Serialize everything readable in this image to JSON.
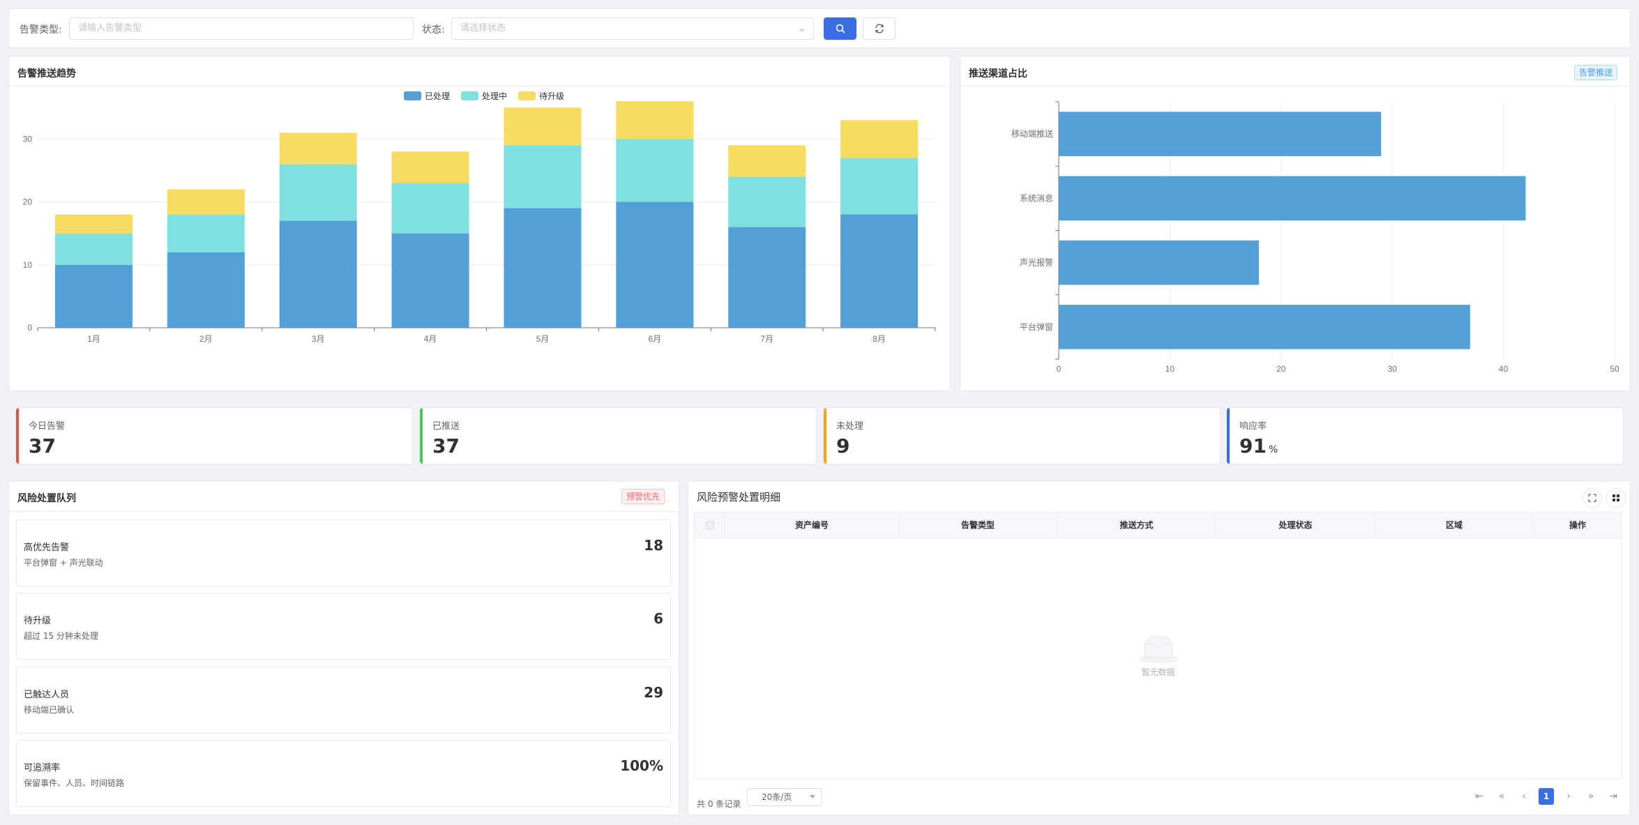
{
  "filters": {
    "alert_type_label": "告警类型:",
    "alert_type_placeholder": "请输入告警类型",
    "status_label": "状态:",
    "status_placeholder": "请选择状态"
  },
  "trend_chart": {
    "title": "告警推送趋势",
    "chart_data": {
      "type": "bar",
      "stacked": true,
      "categories": [
        "1月",
        "2月",
        "3月",
        "4月",
        "5月",
        "6月",
        "7月",
        "8月"
      ],
      "series": [
        {
          "name": "已处理",
          "values": [
            10,
            12,
            17,
            15,
            19,
            20,
            16,
            18
          ],
          "color": "#539fd8"
        },
        {
          "name": "处理中",
          "values": [
            5,
            6,
            9,
            8,
            10,
            10,
            8,
            9
          ],
          "color": "#7ee0e0"
        },
        {
          "name": "待升级",
          "values": [
            3,
            4,
            5,
            5,
            6,
            6,
            5,
            6
          ],
          "color": "#f8dc62"
        }
      ],
      "ylim": [
        0,
        40
      ],
      "yticks": [
        "0",
        "10",
        "20",
        "30",
        "40"
      ],
      "legend": "top-center",
      "grid": true
    }
  },
  "channel_chart": {
    "title": "推送渠道占比",
    "tag": "告警推送",
    "chart_data": {
      "type": "bar",
      "orientation": "horizontal",
      "categories": [
        "移动端推送",
        "系统消息",
        "声光报警",
        "平台弹窗"
      ],
      "values": [
        29,
        42,
        18,
        37
      ],
      "color": "#539fd8",
      "xlim": [
        0,
        50
      ],
      "xticks": [
        "0",
        "10",
        "20",
        "30",
        "40",
        "50"
      ],
      "grid": true
    }
  },
  "stats": [
    {
      "label": "今日告警",
      "value": "37",
      "unit": "",
      "color": "#e5534b"
    },
    {
      "label": "已推送",
      "value": "37",
      "unit": "",
      "color": "#4cc65a"
    },
    {
      "label": "未处理",
      "value": "9",
      "unit": "",
      "color": "#eba23b"
    },
    {
      "label": "响应率",
      "value": "91",
      "unit": "%",
      "color": "#3a6fe3"
    }
  ],
  "queue": {
    "title": "风险处置队列",
    "tag": "预警优先",
    "items": [
      {
        "title": "高优先告警",
        "sub": "平台弹窗 + 声光联动",
        "value": "18"
      },
      {
        "title": "待升级",
        "sub": "超过 15 分钟未处理",
        "value": "6"
      },
      {
        "title": "已触达人员",
        "sub": "移动端已确认",
        "value": "29"
      },
      {
        "title": "可追溯率",
        "sub": "保留事件、人员、时间链路",
        "value": "100%"
      }
    ]
  },
  "detail": {
    "title": "风险预警处置明细",
    "columns": [
      "资产编号",
      "告警类型",
      "推送方式",
      "处理状态",
      "区域",
      "操作"
    ],
    "empty_text": "暂无数据",
    "total_text": "共 0 条记录",
    "page_size": "20条/页",
    "current_page": "1"
  }
}
